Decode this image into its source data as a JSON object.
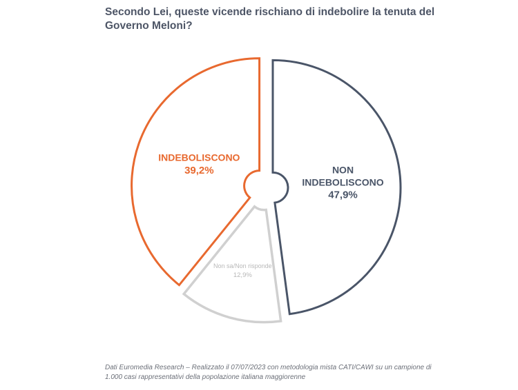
{
  "title": "Secondo Lei, queste vicende rischiano di indebolire la tenuta del Governo Meloni?",
  "footnote": "Dati Euromedia Research – Realizzato il 07/07/2023 con metodologia mista CATI/CAWI su un campione di 1.000 casi rappresentativi della popolazione italiana maggiorenne",
  "chart_data": {
    "type": "pie",
    "title": "Secondo Lei, queste vicende rischiano di indebolire la tenuta del Governo Meloni?",
    "slices": [
      {
        "label_lines": [
          "NON",
          "INDEBOLISCONO"
        ],
        "value": 47.9,
        "value_label": "47,9%",
        "color": "#4a5568"
      },
      {
        "label_lines": [
          "Non sa/Non risponde"
        ],
        "value": 12.9,
        "value_label": "12,9%",
        "color": "#d0d0d0"
      },
      {
        "label_lines": [
          "INDEBOLISCONO"
        ],
        "value": 39.2,
        "value_label": "39,2%",
        "color": "#e8692f"
      }
    ]
  }
}
